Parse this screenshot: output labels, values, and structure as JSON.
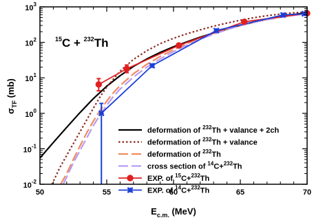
{
  "chart_data": {
    "type": "line",
    "yscale": "log",
    "xlim": [
      50,
      70
    ],
    "ylim": [
      0.01,
      1000
    ],
    "grid": false,
    "legend_position": "bottom-right",
    "xlabel": {
      "main": "E",
      "sub": "c.m.",
      "rest": " (MeV)"
    },
    "ylabel": {
      "main": "σ",
      "sub": "TF",
      "rest": " (mb)"
    },
    "annotation": {
      "pre_sup": "15",
      "mid": "C + ",
      "sup2": "232",
      "post": "Th"
    },
    "x_ticks": [
      {
        "value": 50,
        "label": "50"
      },
      {
        "value": 55,
        "label": "55"
      },
      {
        "value": 60,
        "label": "60"
      },
      {
        "value": 65,
        "label": "65"
      },
      {
        "value": 70,
        "label": "70"
      }
    ],
    "y_ticks": [
      {
        "value": 0.01,
        "base": "10",
        "exp": "-2"
      },
      {
        "value": 0.1,
        "base": "10",
        "exp": "-1"
      },
      {
        "value": 1,
        "base": "10",
        "exp": "0"
      },
      {
        "value": 10,
        "base": "10",
        "exp": "1"
      },
      {
        "value": 100,
        "base": "10",
        "exp": "2"
      },
      {
        "value": 1000,
        "base": "10",
        "exp": "3"
      }
    ],
    "series": [
      {
        "key": "def_val_2ch",
        "legend": [
          "deformation of ",
          {
            "sup": "232"
          },
          "Th + valance + 2ch"
        ],
        "color": "#000000",
        "dash": "",
        "marker": "none",
        "x": [
          50,
          51,
          52,
          53,
          54,
          55,
          56,
          57,
          58,
          59,
          60,
          61,
          62,
          63,
          64,
          65,
          66,
          67,
          68,
          69,
          70
        ],
        "y": [
          0.055,
          0.15,
          0.4,
          1.05,
          2.6,
          5.8,
          11.5,
          21,
          34,
          52,
          75,
          103,
          140,
          183,
          236,
          300,
          370,
          450,
          530,
          610,
          690
        ]
      },
      {
        "key": "def_val",
        "legend": [
          "deformation of ",
          {
            "sup": "232"
          },
          "Th + valance"
        ],
        "color": "#8b2a1f",
        "dash": "2.5,3",
        "marker": "none",
        "x": [
          50.9,
          51.5,
          52,
          52.5,
          53,
          53.5,
          54,
          54.5,
          55,
          56,
          57,
          58,
          59,
          60,
          61,
          62,
          63,
          64,
          65,
          66,
          67,
          68,
          69,
          70
        ],
        "y": [
          0.01,
          0.03,
          0.065,
          0.14,
          0.3,
          0.65,
          1.4,
          2.9,
          5.5,
          15.5,
          33,
          58,
          92,
          130,
          175,
          225,
          285,
          350,
          420,
          495,
          565,
          625,
          680,
          720
        ]
      },
      {
        "key": "def",
        "legend": [
          "deformation of ",
          {
            "sup": "232"
          },
          "Th"
        ],
        "color": "#f08a60",
        "dash": "14,5",
        "marker": "none",
        "x": [
          51.55,
          52,
          52.5,
          53,
          53.5,
          54,
          54.5,
          55,
          55.5,
          56,
          57,
          58,
          59,
          60,
          61,
          62,
          63,
          64,
          65,
          66,
          67,
          68,
          69,
          70
        ],
        "y": [
          0.01,
          0.02,
          0.05,
          0.12,
          0.28,
          0.6,
          1.2,
          2.2,
          3.8,
          6,
          13,
          24,
          40,
          62,
          92,
          130,
          180,
          240,
          305,
          375,
          445,
          515,
          585,
          650
        ]
      },
      {
        "key": "cs14",
        "legend": [
          "cross section of ",
          {
            "sup": "14"
          },
          "C+",
          {
            "sup": "232"
          },
          "Th"
        ],
        "color": "#b79cf0",
        "dash": "14,5",
        "marker": "none",
        "x": [
          51.75,
          52,
          52.5,
          53,
          53.5,
          54,
          54.5,
          55,
          55.5,
          56,
          57,
          58,
          59,
          60,
          61,
          62,
          63,
          64,
          65,
          66,
          67,
          68,
          69,
          70
        ],
        "y": [
          0.01,
          0.016,
          0.04,
          0.09,
          0.2,
          0.45,
          0.9,
          1.7,
          3,
          4.8,
          10.5,
          20,
          34,
          55,
          84,
          122,
          170,
          228,
          295,
          365,
          435,
          505,
          575,
          640
        ]
      },
      {
        "key": "exp15",
        "legend": [
          "EXP. of ",
          {
            "sup": "15"
          },
          "C+",
          {
            "sup": "232"
          },
          "Th"
        ],
        "color": "#e02020",
        "dash": "",
        "marker": "circle",
        "x": [
          54.4,
          56.5,
          60.4,
          65.3,
          70
        ],
        "y": [
          6.5,
          18,
          82,
          380,
          660
        ],
        "err_low": [
          4.3,
          14,
          null,
          null,
          null
        ],
        "err_high": [
          9.5,
          23,
          null,
          null,
          null
        ]
      },
      {
        "key": "exp14",
        "legend": [
          "EXP. of ",
          {
            "sup": "14"
          },
          "C+",
          {
            "sup": "232"
          },
          "Th"
        ],
        "color": "#1a3ed8",
        "dash": "",
        "marker": "x",
        "x": [
          54.6,
          58.4,
          63.2,
          68.2,
          69.8
        ],
        "y": [
          1.0,
          22,
          215,
          590,
          640
        ],
        "err_low": [
          0.01,
          null,
          null,
          null,
          null
        ],
        "err_high": [
          1.9,
          null,
          null,
          null,
          null
        ]
      }
    ],
    "legend_order": [
      "def_val_2ch",
      "def_val",
      "def",
      "cs14",
      "exp15",
      "exp14"
    ]
  }
}
